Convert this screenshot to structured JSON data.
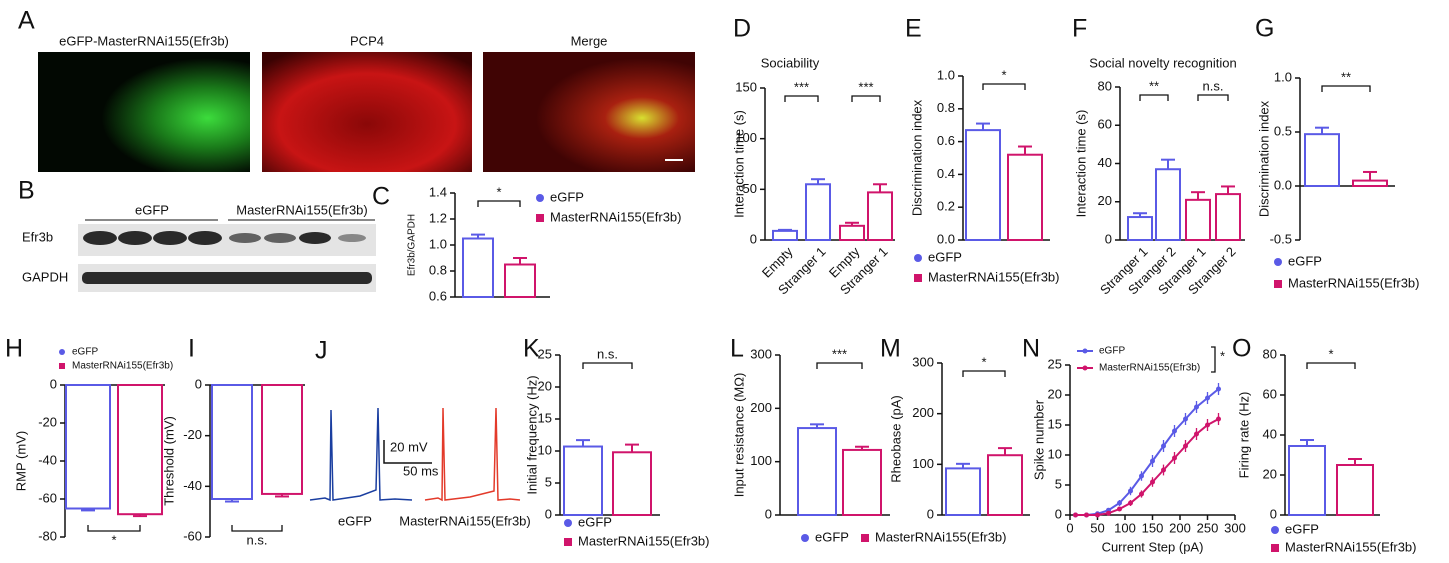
{
  "panel_a": {
    "letter": "A",
    "images": [
      "eGFP-MasterRNAi155(Efr3b)",
      "PCP4",
      "Merge"
    ]
  },
  "panel_b": {
    "letter": "B",
    "groups": [
      "eGFP",
      "MasterRNAi155(Efr3b)"
    ],
    "rows": [
      "Efr3b",
      "GAPDH"
    ]
  },
  "panel_j": {
    "letter": "J",
    "scale_y": "20 mV",
    "scale_x": "50 ms",
    "traces": [
      "eGFP",
      "MasterRNAi155(Efr3b)"
    ]
  },
  "chart_data": [
    {
      "type": "bar",
      "letter": "C",
      "ylabel": "Efr3b/GAPDH",
      "ylim": [
        0.6,
        1.4
      ],
      "yticks": [
        0.6,
        0.8,
        {
          "value": 1,
          "label": "1.0"
        },
        1.2,
        1.4
      ],
      "values": [
        1.05,
        0.85
      ],
      "errors": [
        0.03,
        0.05
      ],
      "colors": [
        "#5a5ae6",
        "#d0146b"
      ],
      "legend": [
        {
          "name": "eGFP",
          "color": "#5a5ae6"
        },
        {
          "name": "MasterRNAi155(Efr3b)",
          "color": "#d0146b"
        }
      ],
      "significance": [
        "*"
      ]
    },
    {
      "type": "bar",
      "letter": "D",
      "title": "Sociability",
      "ylabel": "Interaction time (s)",
      "ylim": [
        0,
        150
      ],
      "yticks": [
        0,
        50,
        100,
        150
      ],
      "categories": [
        "Empty",
        "Stranger 1",
        "Empty",
        "Stranger 1"
      ],
      "values": [
        9,
        55,
        14,
        47
      ],
      "errors": [
        1,
        5,
        3,
        8
      ],
      "colors": [
        "#5a5ae6",
        "#5a5ae6",
        "#d0146b",
        "#d0146b"
      ],
      "significance": [
        "***",
        "***"
      ]
    },
    {
      "type": "bar",
      "letter": "E",
      "ylabel": "Discrimination index",
      "ylim": [
        0,
        1
      ],
      "yticks": [
        {
          "value": 0,
          "label": "0.0"
        },
        0.2,
        0.4,
        0.6,
        0.8,
        {
          "value": 1,
          "label": "1.0"
        }
      ],
      "values": [
        0.67,
        0.52
      ],
      "errors": [
        0.04,
        0.05
      ],
      "colors": [
        "#5a5ae6",
        "#d0146b"
      ],
      "legend": [
        {
          "name": "eGFP",
          "color": "#5a5ae6"
        },
        {
          "name": "MasterRNAi155(Efr3b)",
          "color": "#d0146b"
        }
      ],
      "significance": [
        "*"
      ]
    },
    {
      "type": "bar",
      "letter": "F",
      "title": "Social novelty recognition",
      "ylabel": "Interaction time (s)",
      "ylim": [
        0,
        80
      ],
      "yticks": [
        0,
        20,
        40,
        60,
        80
      ],
      "categories": [
        "Stranger 1",
        "Stranger 2",
        "Stranger 1",
        "Stranger 2"
      ],
      "values": [
        12,
        37,
        21,
        24
      ],
      "errors": [
        2,
        5,
        4,
        4
      ],
      "colors": [
        "#5a5ae6",
        "#5a5ae6",
        "#d0146b",
        "#d0146b"
      ],
      "significance": [
        "**",
        "n.s."
      ]
    },
    {
      "type": "bar",
      "letter": "G",
      "ylabel": "Discrimination index",
      "ylim": [
        -0.5,
        1
      ],
      "yticks": [
        -0.5,
        {
          "value": 0,
          "label": "0.0"
        },
        0.5,
        {
          "value": 1,
          "label": "1.0"
        }
      ],
      "values": [
        0.48,
        0.05
      ],
      "errors": [
        0.06,
        0.08
      ],
      "colors": [
        "#5a5ae6",
        "#d0146b"
      ],
      "legend": [
        {
          "name": "eGFP",
          "color": "#5a5ae6"
        },
        {
          "name": "MasterRNAi155(Efr3b)",
          "color": "#d0146b"
        }
      ],
      "significance": [
        "**"
      ]
    },
    {
      "type": "bar",
      "letter": "H",
      "ylabel": "RMP (mV)",
      "ylim": [
        -80,
        0
      ],
      "yticks": [
        -80,
        -60,
        -40,
        -20,
        0
      ],
      "values": [
        -65,
        -68
      ],
      "errors": [
        1,
        1
      ],
      "colors": [
        "#5a5ae6",
        "#d0146b"
      ],
      "legend": [
        {
          "name": "eGFP",
          "color": "#5a5ae6"
        },
        {
          "name": "MasterRNAi155(Efr3b)",
          "color": "#d0146b"
        }
      ],
      "significance": [
        "*"
      ]
    },
    {
      "type": "bar",
      "letter": "I",
      "ylabel": "Threshold (mV)",
      "ylim": [
        -60,
        0
      ],
      "yticks": [
        -60,
        -40,
        -20,
        0
      ],
      "values": [
        -45,
        -43
      ],
      "errors": [
        1,
        1
      ],
      "colors": [
        "#5a5ae6",
        "#d0146b"
      ],
      "significance": [
        "n.s."
      ]
    },
    {
      "type": "bar",
      "letter": "K",
      "ylabel": "Initial frequency (Hz)",
      "ylim": [
        0,
        25
      ],
      "yticks": [
        0,
        5,
        10,
        15,
        20,
        25
      ],
      "values": [
        10.7,
        9.8
      ],
      "errors": [
        1,
        1.2
      ],
      "colors": [
        "#5a5ae6",
        "#d0146b"
      ],
      "legend": [
        {
          "name": "eGFP",
          "color": "#5a5ae6"
        },
        {
          "name": "MasterRNAi155(Efr3b)",
          "color": "#d0146b"
        }
      ],
      "significance": [
        "n.s."
      ]
    },
    {
      "type": "bar",
      "letter": "L",
      "ylabel": "Input resistance (MΩ)",
      "ylim": [
        0,
        300
      ],
      "yticks": [
        0,
        100,
        200,
        300
      ],
      "values": [
        163,
        122
      ],
      "errors": [
        7,
        6
      ],
      "colors": [
        "#5a5ae6",
        "#d0146b"
      ],
      "legend": [
        {
          "name": "eGFP",
          "color": "#5a5ae6"
        },
        {
          "name": "MasterRNAi155(Efr3b)",
          "color": "#d0146b"
        }
      ],
      "significance": [
        "***"
      ]
    },
    {
      "type": "bar",
      "letter": "M",
      "ylabel": "Rheobase (pA)",
      "ylim": [
        0,
        300
      ],
      "yticks": [
        0,
        100,
        200,
        300
      ],
      "values": [
        92,
        118
      ],
      "errors": [
        9,
        14
      ],
      "colors": [
        "#5a5ae6",
        "#d0146b"
      ],
      "significance": [
        "*"
      ]
    },
    {
      "type": "line",
      "letter": "N",
      "ylabel": "Spike number",
      "xlabel": "Current Step (pA)",
      "x": [
        10,
        30,
        50,
        70,
        90,
        110,
        130,
        150,
        170,
        190,
        210,
        230,
        250,
        270
      ],
      "xlim": [
        0,
        300
      ],
      "xticks": [
        0,
        50,
        100,
        150,
        200,
        250,
        300
      ],
      "ylim": [
        0,
        25
      ],
      "yticks": [
        0,
        5,
        10,
        15,
        20,
        25
      ],
      "series": [
        {
          "name": "eGFP",
          "color": "#5a5ae6",
          "values": [
            0,
            0,
            0.2,
            0.8,
            2,
            4,
            6.5,
            9,
            11.5,
            14,
            16,
            18,
            19.5,
            21
          ],
          "errors": [
            0,
            0,
            0.1,
            0.3,
            0.5,
            0.7,
            0.8,
            1,
            1,
            1,
            1,
            1,
            1,
            1
          ]
        },
        {
          "name": "MasterRNAi155(Efr3b)",
          "color": "#d0146b",
          "values": [
            0,
            0,
            0,
            0.3,
            1,
            2,
            3.5,
            5.5,
            7.5,
            9.5,
            11.5,
            13.5,
            15,
            16
          ],
          "errors": [
            0,
            0,
            0,
            0.1,
            0.3,
            0.5,
            0.6,
            0.8,
            0.9,
            1,
            1,
            1,
            1,
            1
          ]
        }
      ],
      "significance": [
        "*"
      ]
    },
    {
      "type": "bar",
      "letter": "O",
      "ylabel": "Firing rate (Hz)",
      "ylim": [
        0,
        80
      ],
      "yticks": [
        0,
        20,
        40,
        60,
        80
      ],
      "values": [
        34.5,
        25
      ],
      "errors": [
        3,
        3
      ],
      "colors": [
        "#5a5ae6",
        "#d0146b"
      ],
      "legend": [
        {
          "name": "eGFP",
          "color": "#5a5ae6"
        },
        {
          "name": "MasterRNAi155(Efr3b)",
          "color": "#d0146b"
        }
      ],
      "significance": [
        "*"
      ]
    }
  ]
}
